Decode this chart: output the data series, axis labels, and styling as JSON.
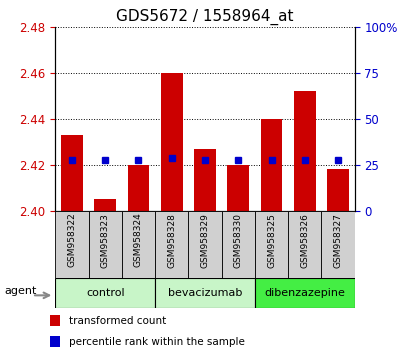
{
  "title": "GDS5672 / 1558964_at",
  "samples": [
    "GSM958322",
    "GSM958323",
    "GSM958324",
    "GSM958328",
    "GSM958329",
    "GSM958330",
    "GSM958325",
    "GSM958326",
    "GSM958327"
  ],
  "bar_values": [
    2.433,
    2.405,
    2.42,
    2.46,
    2.427,
    2.42,
    2.44,
    2.452,
    2.418
  ],
  "bar_base": 2.4,
  "percentile_yvals": [
    2.422,
    2.422,
    2.422,
    2.423,
    2.422,
    2.422,
    2.422,
    2.422,
    2.422
  ],
  "ylim": [
    2.4,
    2.48
  ],
  "yticks_left": [
    2.4,
    2.42,
    2.44,
    2.46,
    2.48
  ],
  "yticks_right": [
    0,
    25,
    50,
    75,
    100
  ],
  "groups": [
    {
      "label": "control",
      "indices": [
        0,
        1,
        2
      ],
      "color": "#c8f5c8"
    },
    {
      "label": "bevacizumab",
      "indices": [
        3,
        4,
        5
      ],
      "color": "#c8f5c8"
    },
    {
      "label": "dibenzazepine",
      "indices": [
        6,
        7,
        8
      ],
      "color": "#44ee44"
    }
  ],
  "bar_color": "#cc0000",
  "percentile_color": "#0000cc",
  "ylabel_left_color": "#cc0000",
  "ylabel_right_color": "#0000cc",
  "sample_box_color": "#d0d0d0",
  "legend_items": [
    {
      "label": "transformed count",
      "color": "#cc0000"
    },
    {
      "label": "percentile rank within the sample",
      "color": "#0000cc"
    }
  ],
  "agent_label": "agent",
  "bar_width": 0.65,
  "title_fontsize": 11,
  "tick_fontsize": 8.5,
  "sample_fontsize": 6.5,
  "group_fontsize": 8,
  "legend_fontsize": 7.5
}
